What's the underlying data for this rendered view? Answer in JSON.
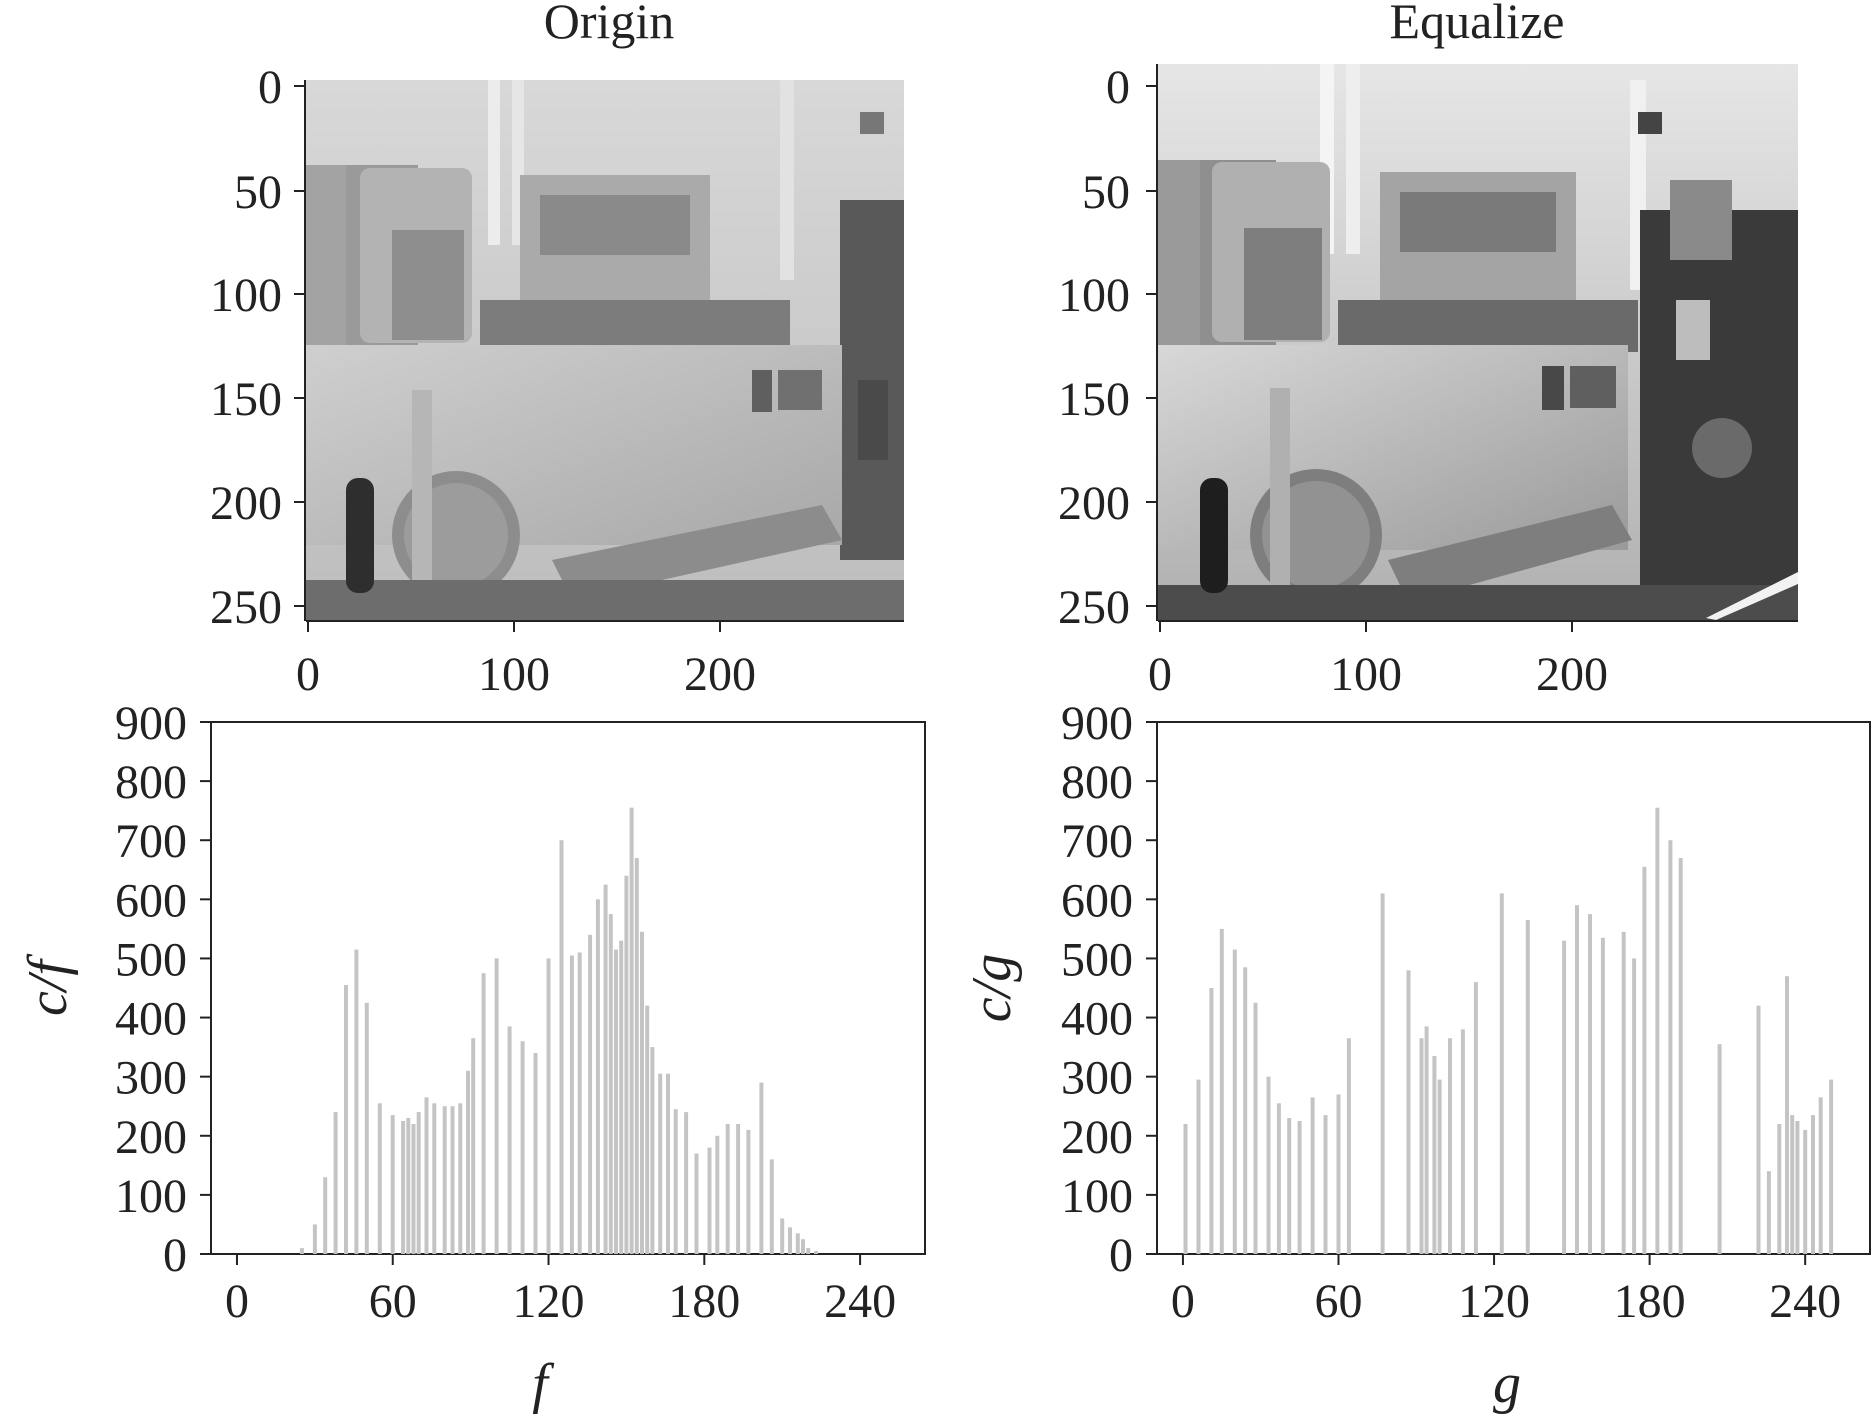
{
  "chart_data": [
    {
      "type": "image",
      "title": "Origin",
      "xticks": [
        0,
        100,
        200
      ],
      "yticks": [
        0,
        50,
        100,
        150,
        200,
        250
      ],
      "xlim": [
        0,
        290
      ],
      "ylim": [
        263,
        0
      ]
    },
    {
      "type": "image",
      "title": "Equalize",
      "xticks": [
        0,
        100,
        200
      ],
      "yticks": [
        0,
        50,
        100,
        150,
        200,
        250
      ],
      "xlim": [
        0,
        310
      ],
      "ylim": [
        263,
        0
      ]
    },
    {
      "type": "bar",
      "xlabel": "f",
      "ylabel": "c/f",
      "xlim": [
        -10,
        265
      ],
      "ylim": [
        0,
        900
      ],
      "xticks": [
        0,
        60,
        120,
        180,
        240
      ],
      "yticks": [
        0,
        100,
        200,
        300,
        400,
        500,
        600,
        700,
        800,
        900
      ],
      "bar_color": "#c4c4c4",
      "x": [
        25,
        30,
        34,
        38,
        42,
        46,
        50,
        55,
        60,
        64,
        66,
        68,
        70,
        73,
        76,
        80,
        83,
        86,
        89,
        91,
        95,
        100,
        105,
        110,
        115,
        120,
        125,
        129,
        132,
        136,
        139,
        142,
        144,
        146,
        148,
        150,
        152,
        154,
        156,
        158,
        160,
        163,
        166,
        169,
        173,
        177,
        182,
        185,
        189,
        193,
        197,
        202,
        206,
        210,
        213,
        216,
        218,
        220,
        223
      ],
      "values": [
        10,
        50,
        130,
        240,
        455,
        515,
        425,
        255,
        235,
        225,
        230,
        220,
        240,
        265,
        255,
        250,
        250,
        255,
        310,
        365,
        475,
        500,
        385,
        360,
        340,
        500,
        700,
        505,
        510,
        540,
        600,
        625,
        575,
        515,
        530,
        640,
        755,
        670,
        545,
        420,
        350,
        305,
        305,
        245,
        240,
        170,
        180,
        200,
        220,
        220,
        210,
        290,
        160,
        60,
        45,
        35,
        25,
        10,
        5
      ]
    },
    {
      "type": "bar",
      "xlabel": "g",
      "ylabel": "c/g",
      "xlim": [
        -10,
        265
      ],
      "ylim": [
        0,
        900
      ],
      "xticks": [
        0,
        60,
        120,
        180,
        240
      ],
      "yticks": [
        0,
        100,
        200,
        300,
        400,
        500,
        600,
        700,
        800,
        900
      ],
      "bar_color": "#c4c4c4",
      "x": [
        1,
        6,
        11,
        15,
        20,
        24,
        28,
        33,
        37,
        41,
        45,
        50,
        55,
        60,
        64,
        77,
        87,
        92,
        94,
        97,
        99,
        103,
        108,
        113,
        123,
        133,
        147,
        152,
        157,
        162,
        170,
        174,
        178,
        183,
        188,
        192,
        207,
        222,
        226,
        230,
        233,
        235,
        237,
        240,
        243,
        246,
        250
      ],
      "values": [
        220,
        295,
        450,
        550,
        515,
        485,
        425,
        300,
        255,
        230,
        225,
        265,
        235,
        270,
        365,
        610,
        480,
        365,
        385,
        335,
        295,
        365,
        380,
        460,
        610,
        565,
        530,
        590,
        575,
        535,
        545,
        500,
        655,
        755,
        700,
        670,
        355,
        420,
        140,
        220,
        470,
        235,
        225,
        210,
        235,
        265,
        295
      ]
    }
  ]
}
